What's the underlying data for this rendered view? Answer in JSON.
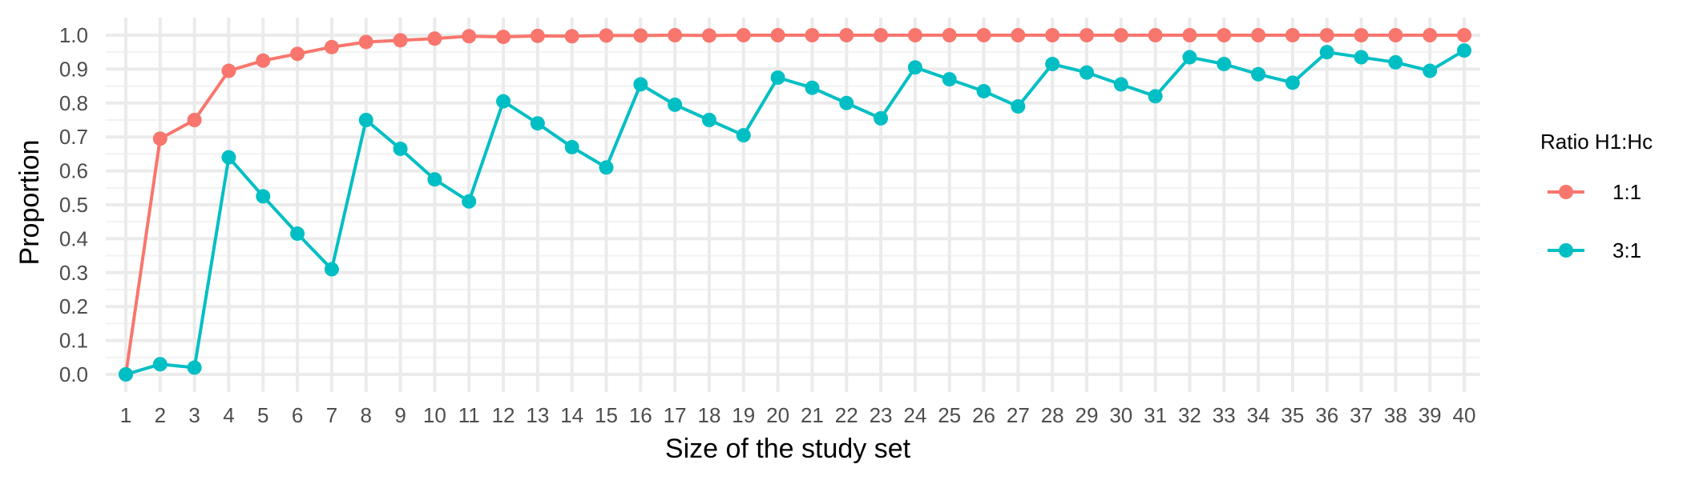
{
  "chart_data": {
    "type": "line",
    "xlabel": "Size of the study set",
    "ylabel": "Proportion",
    "x": [
      1,
      2,
      3,
      4,
      5,
      6,
      7,
      8,
      9,
      10,
      11,
      12,
      13,
      14,
      15,
      16,
      17,
      18,
      19,
      20,
      21,
      22,
      23,
      24,
      25,
      26,
      27,
      28,
      29,
      30,
      31,
      32,
      33,
      34,
      35,
      36,
      37,
      38,
      39,
      40
    ],
    "xlim": [
      1,
      40
    ],
    "ylim": [
      0,
      1
    ],
    "y_ticks": [
      "0.0",
      "0.1",
      "0.2",
      "0.3",
      "0.4",
      "0.5",
      "0.6",
      "0.7",
      "0.8",
      "0.9",
      "1.0"
    ],
    "grid": true,
    "legend": {
      "title": "Ratio H1:Hc",
      "position": "right"
    },
    "series": [
      {
        "name": "1:1",
        "color": "#F8766D",
        "values": [
          0.0,
          0.695,
          0.75,
          0.895,
          0.925,
          0.945,
          0.965,
          0.98,
          0.985,
          0.99,
          0.997,
          0.995,
          0.998,
          0.997,
          0.999,
          0.999,
          1.0,
          0.999,
          1.0,
          1.0,
          1.0,
          1.0,
          1.0,
          1.0,
          1.0,
          1.0,
          1.0,
          1.0,
          1.0,
          1.0,
          1.0,
          1.0,
          1.0,
          1.0,
          1.0,
          1.0,
          1.0,
          1.0,
          1.0,
          1.0
        ]
      },
      {
        "name": "3:1",
        "color": "#00BFC4",
        "values": [
          0.0,
          0.03,
          0.02,
          0.64,
          0.525,
          0.415,
          0.31,
          0.75,
          0.665,
          0.575,
          0.51,
          0.805,
          0.74,
          0.67,
          0.61,
          0.855,
          0.795,
          0.75,
          0.705,
          0.875,
          0.845,
          0.8,
          0.755,
          0.905,
          0.87,
          0.835,
          0.79,
          0.915,
          0.89,
          0.855,
          0.82,
          0.935,
          0.915,
          0.885,
          0.86,
          0.95,
          0.935,
          0.92,
          0.895,
          0.955
        ]
      }
    ]
  }
}
